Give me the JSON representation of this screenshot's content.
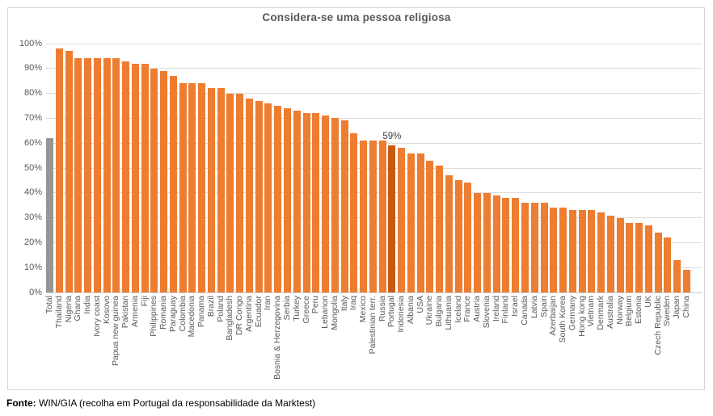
{
  "chart_data": {
    "type": "bar",
    "title": "Considera-se uma pessoa religiosa",
    "xlabel": "",
    "ylabel": "",
    "ylim": [
      0,
      100
    ],
    "grid": true,
    "legend": false,
    "ytick_labels": [
      "0%",
      "10%",
      "20%",
      "30%",
      "40%",
      "50%",
      "60%",
      "70%",
      "80%",
      "90%",
      "100%"
    ],
    "categories": [
      "Total",
      "Thailand",
      "Nigeria",
      "Ghana",
      "India",
      "Ivory coast",
      "Kosovo",
      "Papua new guinea",
      "Pakistan",
      "Armenia",
      "Fiji",
      "Philippines",
      "Romania",
      "Paraguay",
      "Colombia",
      "Macedonia",
      "Panama",
      "Brazil",
      "Poland",
      "Bangladesh",
      "DR Congo",
      "Argentina",
      "Ecuador",
      "Iran",
      "Bosnia & Herzegovina",
      "Serbia",
      "Turkey",
      "Greece",
      "Peru",
      "Lebanon",
      "Mongolia",
      "Italy",
      "Iraq",
      "Mexico",
      "Palestinian terr.",
      "Russia",
      "Portugal",
      "Indonesia",
      "Albania",
      "USA",
      "Ukraine",
      "Bulgaria",
      "Lithuania",
      "Iceland",
      "France",
      "Austria",
      "Slovenia",
      "Ireland",
      "Finland",
      "Israel",
      "Canada",
      "Latvia",
      "Spain",
      "Azerbaijan",
      "South Korea",
      "Germany",
      "Hong kong",
      "Vietnam",
      "Denmark",
      "Australia",
      "Norway",
      "Belgium",
      "Estonia",
      "UK",
      "Czech Republic",
      "Sweden",
      "Japan",
      "China"
    ],
    "values": [
      62,
      98,
      97,
      94,
      94,
      94,
      94,
      94,
      93,
      92,
      92,
      90,
      89,
      87,
      84,
      84,
      84,
      82,
      82,
      80,
      80,
      78,
      77,
      76,
      75,
      74,
      73,
      72,
      72,
      71,
      70,
      69,
      64,
      61,
      61,
      61,
      59,
      58,
      56,
      56,
      53,
      51,
      47,
      45,
      44,
      40,
      40,
      39,
      38,
      38,
      36,
      36,
      36,
      34,
      34,
      33,
      33,
      33,
      32,
      31,
      30,
      28,
      28,
      27,
      24,
      22,
      13,
      9
    ],
    "colors": {
      "bar_default": "#ED7D31",
      "bar_total": "#969696",
      "bar_highlight": "#C55A11",
      "gridline": "#DCDCDC",
      "axis_line": "#C9C9C9",
      "tick_text": "#595959",
      "title_text": "#595959",
      "annotation_text": "#404040"
    },
    "total_category": "Total",
    "highlight": {
      "category": "Portugal",
      "label": "59%"
    }
  },
  "source": {
    "prefix": "Fonte:",
    "text": " WIN/GIA (recolha em Portugal da responsabilidade da Marktest)"
  }
}
